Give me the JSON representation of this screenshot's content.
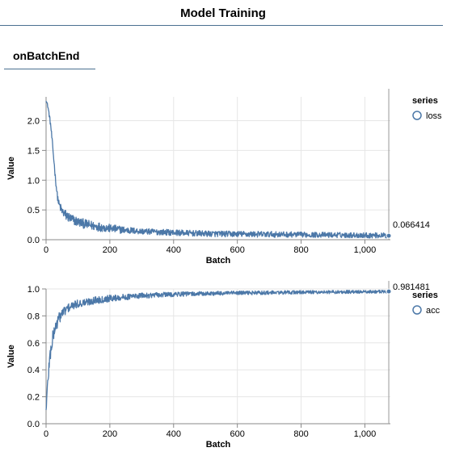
{
  "window": {
    "title": "Model Training"
  },
  "tabs": [
    {
      "label": "onBatchEnd"
    }
  ],
  "chart_data": [
    {
      "type": "line",
      "xlabel": "Batch",
      "ylabel": "Value",
      "xlim": [
        0,
        1080
      ],
      "ylim": [
        0,
        2.4
      ],
      "xticks": [
        0,
        200,
        400,
        600,
        800,
        1000
      ],
      "xtick_labels": [
        "0",
        "200",
        "400",
        "600",
        "800",
        "1,000"
      ],
      "yticks": [
        0,
        0.5,
        1,
        1.5,
        2
      ],
      "ytick_labels": [
        "0.0",
        "0.5",
        "1.0",
        "1.5",
        "2.0"
      ],
      "legend": {
        "title": "series",
        "placement": "right"
      },
      "grid": true,
      "series": [
        {
          "name": "loss",
          "color": "#4c78a8",
          "x": [
            0,
            5,
            10,
            15,
            20,
            25,
            30,
            35,
            40,
            50,
            60,
            70,
            80,
            100,
            125,
            150,
            200,
            250,
            300,
            400,
            500,
            600,
            700,
            800,
            900,
            1000,
            1075
          ],
          "y": [
            2.35,
            2.25,
            2.1,
            1.9,
            1.6,
            1.3,
            1.0,
            0.75,
            0.6,
            0.48,
            0.42,
            0.38,
            0.34,
            0.3,
            0.26,
            0.23,
            0.19,
            0.16,
            0.14,
            0.12,
            0.1,
            0.095,
            0.09,
            0.085,
            0.08,
            0.075,
            0.07
          ],
          "spread": [
            0.02,
            0.03,
            0.04,
            0.05,
            0.05,
            0.05,
            0.05,
            0.06,
            0.07,
            0.08,
            0.09,
            0.09,
            0.09,
            0.08,
            0.08,
            0.08,
            0.07,
            0.06,
            0.05,
            0.05,
            0.05,
            0.05,
            0.05,
            0.045,
            0.045,
            0.045,
            0.045
          ]
        }
      ],
      "annotation": {
        "x": 1075,
        "y": 0.066414,
        "label": "0.066414"
      }
    },
    {
      "type": "line",
      "xlabel": "Batch",
      "ylabel": "Value",
      "xlim": [
        0,
        1080
      ],
      "ylim": [
        0,
        1.0
      ],
      "xticks": [
        0,
        200,
        400,
        600,
        800,
        1000
      ],
      "xtick_labels": [
        "0",
        "200",
        "400",
        "600",
        "800",
        "1,000"
      ],
      "yticks": [
        0,
        0.2,
        0.4,
        0.6,
        0.8,
        1.0
      ],
      "ytick_labels": [
        "0.0",
        "0.2",
        "0.4",
        "0.6",
        "0.8",
        "1.0"
      ],
      "legend": {
        "title": "series",
        "placement": "right"
      },
      "grid": true,
      "series": [
        {
          "name": "acc",
          "color": "#4c78a8",
          "x": [
            0,
            5,
            10,
            15,
            20,
            25,
            30,
            40,
            50,
            60,
            70,
            80,
            100,
            125,
            150,
            200,
            250,
            300,
            400,
            500,
            600,
            700,
            800,
            900,
            1000,
            1075
          ],
          "y": [
            0.1,
            0.3,
            0.45,
            0.55,
            0.62,
            0.68,
            0.72,
            0.78,
            0.82,
            0.84,
            0.86,
            0.87,
            0.89,
            0.9,
            0.915,
            0.93,
            0.94,
            0.95,
            0.96,
            0.965,
            0.97,
            0.972,
            0.975,
            0.977,
            0.978,
            0.98
          ],
          "spread": [
            0.02,
            0.05,
            0.06,
            0.06,
            0.06,
            0.05,
            0.05,
            0.045,
            0.04,
            0.035,
            0.035,
            0.03,
            0.03,
            0.03,
            0.028,
            0.025,
            0.022,
            0.02,
            0.018,
            0.016,
            0.015,
            0.014,
            0.013,
            0.012,
            0.012,
            0.012
          ]
        }
      ],
      "annotation": {
        "x": 1075,
        "y": 0.981481,
        "label": "0.981481"
      }
    }
  ]
}
